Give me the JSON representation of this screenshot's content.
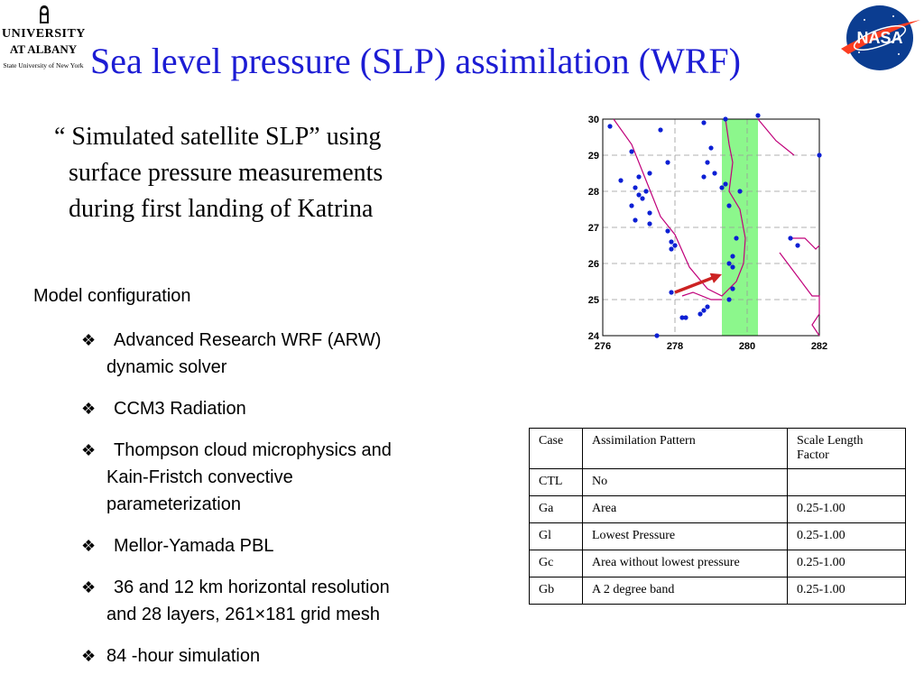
{
  "logo_ua": {
    "line1": "UNIVERSITY",
    "line2": "AT ALBANY",
    "line3": "State University of New York"
  },
  "logo_nasa": {
    "text": "NASA"
  },
  "title": "Sea level pressure (SLP) assimilation (WRF)",
  "quote": {
    "line1": "“ Simulated satellite SLP” using",
    "line2": "surface pressure measurements",
    "line3": "during first landing of Katrina"
  },
  "config": {
    "heading": "Model configuration",
    "bullet_symbol": "❖",
    "items": [
      {
        "line1": "Advanced Research WRF (ARW)",
        "line2": "dynamic solver"
      },
      {
        "line1": "CCM3 Radiation",
        "line2": ""
      },
      {
        "line1": "Thompson cloud microphysics and",
        "line2": "Kain-Fristch convective",
        "line3": "parameterization"
      },
      {
        "line1": "Mellor-Yamada PBL",
        "line2": ""
      },
      {
        "line1": "36 and 12 km horizontal resolution",
        "line2": "and 28 layers, 261×181 grid mesh"
      },
      {
        "line1": "84 -hour simulation",
        "line2": ""
      }
    ]
  },
  "colors": {
    "title": "#1c1cd4",
    "track": "#c0007a",
    "stations": "#0b1fd4",
    "band": "#8cf78c",
    "arrow": "#cc2222"
  },
  "chart_data": {
    "type": "scatter",
    "title": "",
    "xlabel": "",
    "ylabel": "",
    "xlim": [
      276,
      282
    ],
    "ylim": [
      24,
      30
    ],
    "xticks": [
      276,
      278,
      280,
      282
    ],
    "yticks": [
      24,
      25,
      26,
      27,
      28,
      29,
      30
    ],
    "grid": true,
    "band": {
      "x0": 279.3,
      "x1": 280.3
    },
    "track": [
      [
        276.3,
        30.0
      ],
      [
        276.8,
        29.3
      ],
      [
        277.2,
        28.3
      ],
      [
        277.6,
        27.3
      ],
      [
        278.0,
        26.8
      ],
      [
        278.4,
        25.9
      ],
      [
        278.9,
        25.3
      ],
      [
        279.3,
        25.1
      ],
      [
        279.7,
        25.5
      ],
      [
        279.9,
        26.0
      ],
      [
        279.95,
        26.7
      ],
      [
        279.8,
        27.5
      ],
      [
        279.5,
        28.0
      ],
      [
        279.6,
        28.8
      ],
      [
        279.5,
        29.3
      ],
      [
        279.4,
        30.0
      ]
    ],
    "track2": [
      [
        281.2,
        26.7
      ],
      [
        281.6,
        26.7
      ],
      [
        281.9,
        26.4
      ],
      [
        282.0,
        26.5
      ]
    ],
    "track3": [
      [
        280.3,
        30.0
      ],
      [
        280.8,
        29.4
      ],
      [
        281.3,
        29.0
      ]
    ],
    "coast": [
      [
        280.9,
        26.3
      ],
      [
        281.8,
        25.1
      ],
      [
        282.0,
        25.1
      ],
      [
        282.0,
        24.6
      ],
      [
        281.8,
        24.3
      ],
      [
        282.0,
        24.0
      ]
    ],
    "coast2": [
      [
        278.2,
        25.1
      ],
      [
        278.5,
        25.2
      ],
      [
        279.0,
        25.0
      ],
      [
        279.3,
        25.0
      ]
    ],
    "stations": [
      [
        276.2,
        29.8
      ],
      [
        276.8,
        29.1
      ],
      [
        276.5,
        28.3
      ],
      [
        277.0,
        28.4
      ],
      [
        276.9,
        28.1
      ],
      [
        277.0,
        27.9
      ],
      [
        277.1,
        27.8
      ],
      [
        277.2,
        28.0
      ],
      [
        277.3,
        28.5
      ],
      [
        276.8,
        27.6
      ],
      [
        276.9,
        27.2
      ],
      [
        277.3,
        27.4
      ],
      [
        277.3,
        27.1
      ],
      [
        277.6,
        29.7
      ],
      [
        277.8,
        28.8
      ],
      [
        277.8,
        26.9
      ],
      [
        277.9,
        26.6
      ],
      [
        278.0,
        26.5
      ],
      [
        277.9,
        26.4
      ],
      [
        278.8,
        29.9
      ],
      [
        279.0,
        29.2
      ],
      [
        278.9,
        28.8
      ],
      [
        278.8,
        28.4
      ],
      [
        279.1,
        28.5
      ],
      [
        279.3,
        28.1
      ],
      [
        279.4,
        28.2
      ],
      [
        279.5,
        27.6
      ],
      [
        279.7,
        26.7
      ],
      [
        279.6,
        26.2
      ],
      [
        279.5,
        26.0
      ],
      [
        279.6,
        25.9
      ],
      [
        279.6,
        25.3
      ],
      [
        279.5,
        25.0
      ],
      [
        278.9,
        24.8
      ],
      [
        278.8,
        24.7
      ],
      [
        278.7,
        24.6
      ],
      [
        278.3,
        24.5
      ],
      [
        278.2,
        24.5
      ],
      [
        277.9,
        25.2
      ],
      [
        277.5,
        24.0
      ],
      [
        279.8,
        28.0
      ],
      [
        279.4,
        30.0
      ],
      [
        280.3,
        30.1
      ],
      [
        281.2,
        26.7
      ],
      [
        281.4,
        26.5
      ],
      [
        282.0,
        29.0
      ]
    ],
    "arrow": {
      "from": [
        278.0,
        25.2
      ],
      "to": [
        279.3,
        25.7
      ]
    }
  },
  "table": {
    "headers": [
      "Case",
      "Assimilation Pattern",
      "Scale Length Factor"
    ],
    "rows": [
      [
        "CTL",
        "No",
        ""
      ],
      [
        "Ga",
        "Area",
        "0.25-1.00"
      ],
      [
        "Gl",
        "Lowest Pressure",
        "0.25-1.00"
      ],
      [
        "Gc",
        "Area without lowest pressure",
        "0.25-1.00"
      ],
      [
        "Gb",
        "A 2 degree band",
        "0.25-1.00"
      ]
    ]
  }
}
